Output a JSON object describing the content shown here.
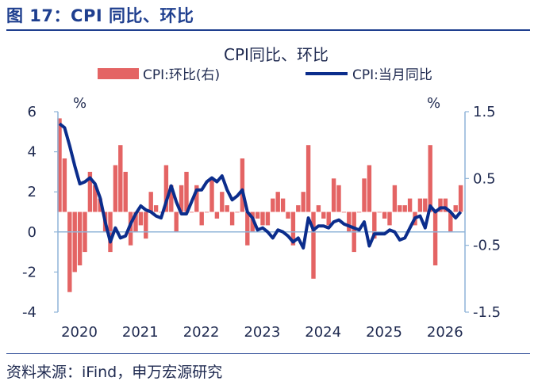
{
  "figure_title": "图 17：CPI 同比、环比",
  "source": "资料来源：iFind，申万宏源研究",
  "colors": {
    "bar": "#e46464",
    "line": "#0b2d8c",
    "axis": "#8fb4d8",
    "text": "#1f2a50",
    "title": "#1f3f8f"
  },
  "chart_data": {
    "type": "bar+line",
    "title": "CPI同比、环比",
    "x_tick_labels": [
      "2020",
      "2021",
      "2022",
      "2023",
      "2024",
      "2025",
      "2026"
    ],
    "left_unit": "%",
    "right_unit": "%",
    "left_axis": {
      "ylim": [
        -4,
        6
      ],
      "ticks": [
        "-4",
        "-2",
        "0",
        "2",
        "4",
        "6"
      ]
    },
    "right_axis": {
      "ylim": [
        -1.5,
        1.5
      ],
      "ticks": [
        "-1.5",
        "-0.5",
        "0.5",
        "1.5"
      ]
    },
    "legend": [
      {
        "label": "CPI:环比(右)",
        "type": "bar",
        "axis": "right"
      },
      {
        "label": "CPI:当月同比",
        "type": "line",
        "axis": "left"
      }
    ],
    "series": [
      {
        "name": "CPI:当月同比",
        "type": "line",
        "axis": "left",
        "start": "2020-01",
        "values": [
          5.4,
          5.2,
          4.3,
          3.3,
          2.4,
          2.5,
          2.7,
          2.4,
          1.7,
          0.5,
          -0.5,
          0.2,
          -0.3,
          -0.2,
          0.4,
          0.9,
          1.3,
          1.1,
          1.0,
          0.8,
          0.7,
          1.5,
          2.3,
          1.5,
          0.9,
          0.9,
          1.5,
          2.1,
          2.1,
          2.5,
          2.7,
          2.5,
          2.8,
          2.1,
          1.6,
          1.8,
          2.1,
          1.0,
          0.7,
          0.1,
          0.2,
          0.0,
          -0.3,
          0.1,
          0.0,
          -0.2,
          -0.5,
          -0.3,
          -0.8,
          0.7,
          0.1,
          0.3,
          0.3,
          0.2,
          0.5,
          0.6,
          0.4,
          0.3,
          0.2,
          0.1,
          0.5,
          -0.7,
          -0.1,
          -0.1,
          -0.1,
          0.1,
          0.0,
          -0.4,
          -0.3,
          0.2,
          0.7,
          0.8,
          0.2,
          1.3,
          1.0,
          1.2,
          1.2,
          1.0,
          0.7,
          1.0
        ]
      },
      {
        "name": "CPI:环比(右)",
        "type": "bar",
        "axis": "right",
        "start": "2020-01",
        "values": [
          1.4,
          0.8,
          -1.2,
          -0.9,
          -0.8,
          -0.6,
          0.6,
          0.4,
          0.2,
          -0.3,
          -0.6,
          0.7,
          1.0,
          0.6,
          -0.5,
          -0.3,
          -0.2,
          -0.4,
          0.3,
          0.1,
          0.0,
          0.7,
          0.4,
          -0.3,
          0.4,
          0.6,
          0.0,
          0.4,
          -0.2,
          0.0,
          0.5,
          -0.1,
          0.3,
          0.1,
          -0.2,
          0.0,
          0.8,
          -0.5,
          -0.3,
          -0.1,
          -0.2,
          -0.2,
          0.2,
          0.3,
          0.2,
          -0.1,
          -0.5,
          0.1,
          0.3,
          1.0,
          -1.0,
          0.1,
          -0.1,
          -0.2,
          0.5,
          0.4,
          0.0,
          -0.3,
          -0.6,
          0.0,
          0.5,
          0.7,
          -0.4,
          0.0,
          -0.1,
          -0.2,
          0.4,
          0.1,
          0.1,
          0.2,
          -0.2,
          0.2,
          0.2,
          1.0,
          -0.8,
          0.2,
          0.2,
          -0.3,
          0.1,
          0.4
        ]
      }
    ]
  }
}
